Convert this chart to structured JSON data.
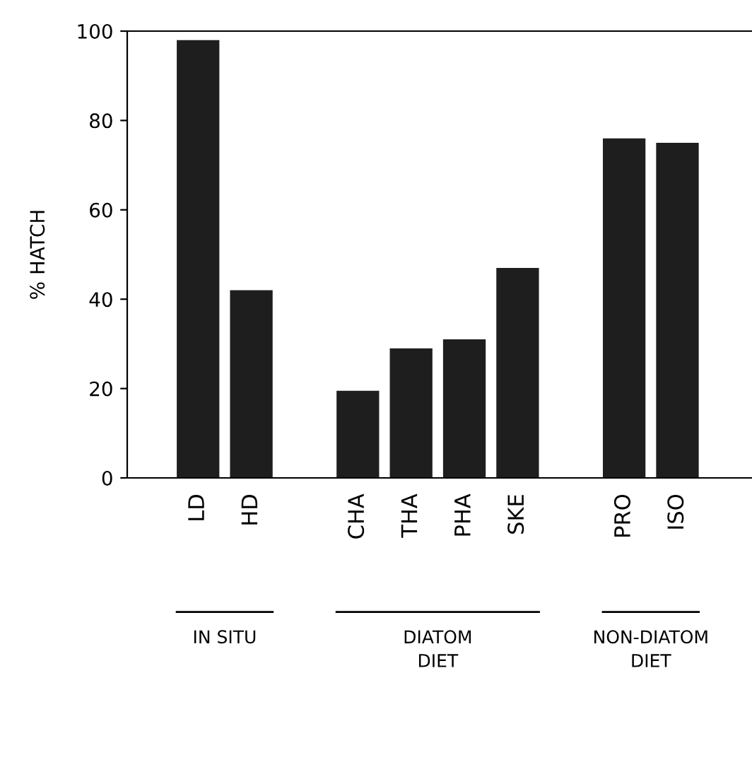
{
  "chart_data": {
    "type": "bar",
    "ylabel": "% HATCH",
    "categories": [
      "LD",
      "HD",
      null,
      "CHA",
      "THA",
      "PHA",
      "SKE",
      null,
      "PRO",
      "ISO"
    ],
    "values": [
      98,
      42,
      null,
      19.5,
      29,
      31,
      47,
      null,
      76,
      75
    ],
    "color": "#1e1e1e",
    "ylim": [
      0,
      100
    ],
    "yticks": [
      0,
      20,
      40,
      60,
      80,
      100
    ],
    "grid": false,
    "annotations": [
      "IN SITU",
      "DIATOM\nDIET",
      "NON-DIATOM\nDIET"
    ]
  }
}
